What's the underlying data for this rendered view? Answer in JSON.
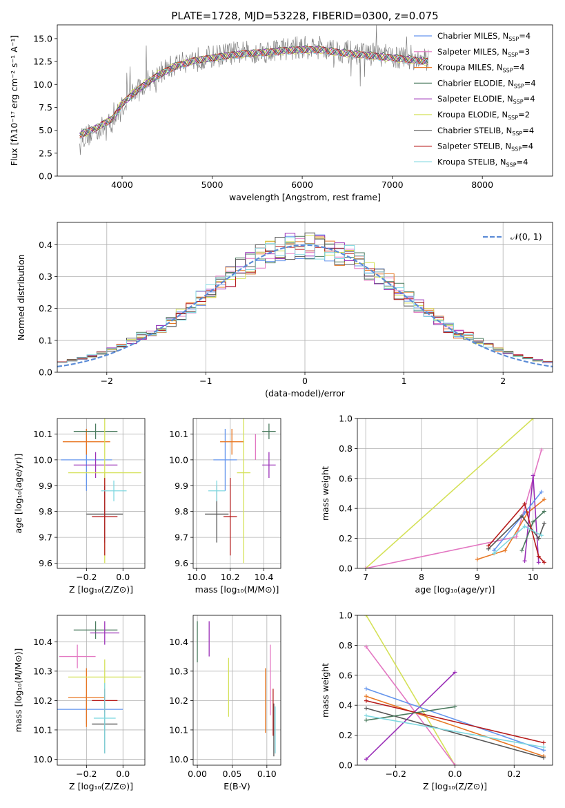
{
  "chart_data": [
    {
      "type": "line",
      "title": "PLATE=1728, MJD=53228, FIBERID=0300, z=0.075",
      "xlabel": "wavelength [Angstrom, rest frame]",
      "ylabel": "Flux [f_λ10^-17 erg cm^-2 s^-1 A^-1]",
      "xlim": [
        3280,
        8780
      ],
      "ylim": [
        0,
        16.5
      ],
      "xticks": [
        4000,
        5000,
        6000,
        7000,
        8000
      ],
      "yticks": [
        0.0,
        2.5,
        5.0,
        7.5,
        10.0,
        12.5,
        15.0
      ],
      "grid": false,
      "legend_position": "right",
      "observed": {
        "x": [
          3530,
          3600,
          3700,
          3800,
          3900,
          4000,
          4100,
          4200,
          4300,
          4400,
          4600,
          4800,
          5000,
          5200,
          5400,
          5600,
          5800,
          6000,
          6200,
          6400,
          6600,
          6800,
          7000,
          7200,
          7400
        ],
        "y": [
          4.6,
          4.3,
          5.0,
          5.3,
          6.0,
          7.5,
          9.0,
          9.5,
          10.5,
          11.2,
          12.2,
          12.8,
          13.0,
          13.4,
          13.5,
          13.6,
          13.9,
          14.0,
          14.1,
          13.7,
          13.4,
          13.3,
          13.0,
          12.8,
          12.6
        ],
        "color": "#808080"
      },
      "model_x": [
        3530,
        3700,
        3900,
        4000,
        4200,
        4400,
        4600,
        4800,
        5000,
        5200,
        5400,
        5600,
        5800,
        6000,
        6200,
        6400,
        6600,
        6800,
        7000,
        7200,
        7400
      ],
      "series": [
        {
          "name": "Chabrier MILES, N_SSP=4",
          "color": "#6495ed",
          "y": [
            4.5,
            5.2,
            6.3,
            7.9,
            9.6,
            11.0,
            12.0,
            12.6,
            12.9,
            13.2,
            13.4,
            13.5,
            13.7,
            13.8,
            13.8,
            13.5,
            13.3,
            13.1,
            12.9,
            12.7,
            12.5
          ]
        },
        {
          "name": "Salpeter MILES, N_SSP=3",
          "color": "#e377c2",
          "y": [
            4.4,
            5.1,
            6.2,
            7.8,
            9.5,
            10.9,
            11.9,
            12.5,
            12.8,
            13.1,
            13.3,
            13.4,
            13.6,
            13.7,
            13.7,
            13.4,
            13.2,
            13.0,
            12.8,
            12.6,
            12.4
          ]
        },
        {
          "name": "Kroupa MILES, N_SSP=4",
          "color": "#e87722",
          "y": [
            4.5,
            5.1,
            6.3,
            7.9,
            9.6,
            11.0,
            12.0,
            12.6,
            12.9,
            13.2,
            13.4,
            13.5,
            13.7,
            13.8,
            13.8,
            13.5,
            13.3,
            13.1,
            12.9,
            12.7,
            12.5
          ]
        },
        {
          "name": "Chabrier ELODIE, N_SSP=4",
          "color": "#4b7b5f",
          "y": [
            4.6,
            5.2,
            6.3,
            7.9,
            9.6,
            11.0,
            12.1,
            12.6,
            12.9,
            13.2,
            13.4,
            13.6,
            13.8,
            13.9,
            13.9,
            13.6,
            13.4,
            13.2,
            13.0,
            12.8,
            12.6
          ]
        },
        {
          "name": "Salpeter ELODIE, N_SSP=4",
          "color": "#9b30b8",
          "y": [
            4.5,
            5.2,
            6.3,
            7.9,
            9.6,
            11.0,
            12.0,
            12.6,
            12.9,
            13.2,
            13.4,
            13.5,
            13.7,
            13.8,
            13.8,
            13.5,
            13.3,
            13.1,
            12.9,
            12.7,
            12.5
          ]
        },
        {
          "name": "Kroupa ELODIE, N_SSP=2",
          "color": "#d4e157",
          "y": [
            4.4,
            5.1,
            6.4,
            8.1,
            9.8,
            11.2,
            12.1,
            12.6,
            12.9,
            13.1,
            13.3,
            13.4,
            13.6,
            13.7,
            13.7,
            13.4,
            13.2,
            13.0,
            12.8,
            12.6,
            12.4
          ]
        },
        {
          "name": "Chabrier STELIB, N_SSP=4",
          "color": "#555555",
          "y": [
            4.5,
            5.2,
            6.3,
            7.9,
            9.6,
            11.0,
            12.0,
            12.6,
            12.9,
            13.2,
            13.4,
            13.5,
            13.7,
            13.8,
            13.8,
            13.5,
            13.3,
            13.1,
            12.9,
            12.7,
            12.5
          ]
        },
        {
          "name": "Salpeter STELIB, N_SSP=4",
          "color": "#b71c1c",
          "y": [
            4.5,
            5.2,
            6.3,
            7.9,
            9.6,
            11.0,
            12.0,
            12.6,
            12.9,
            13.2,
            13.4,
            13.5,
            13.7,
            13.8,
            13.8,
            13.5,
            13.3,
            13.1,
            12.9,
            12.7,
            12.5
          ]
        },
        {
          "name": "Kroupa STELIB, N_SSP=4",
          "color": "#7fd8e0",
          "y": [
            4.4,
            5.1,
            6.2,
            7.8,
            9.5,
            10.9,
            11.9,
            12.5,
            12.8,
            13.1,
            13.3,
            13.4,
            13.6,
            13.7,
            13.7,
            13.4,
            13.2,
            13.0,
            12.8,
            12.6,
            12.4
          ]
        }
      ]
    },
    {
      "type": "line",
      "xlabel": "(data-model)/error",
      "ylabel": "Normed distribution",
      "xlim": [
        -2.5,
        2.5
      ],
      "ylim": [
        0,
        0.47
      ],
      "xticks": [
        -2,
        -1,
        0,
        1,
        2
      ],
      "yticks": [
        0.0,
        0.1,
        0.2,
        0.3,
        0.4
      ],
      "grid": true,
      "legend_position": "top-right",
      "reference": {
        "name": "𝒩(0, 1)",
        "color": "#5b8bd6",
        "mean": 0,
        "sigma": 1
      }
    },
    {
      "type": "scatter",
      "xlabel": "Z [log10(Z/Z⊙)]",
      "ylabel": "age [log10(age/yr)]",
      "xlim": [
        -0.36,
        0.12
      ],
      "ylim": [
        9.58,
        10.16
      ],
      "xticks": [
        -0.2,
        0.0
      ],
      "yticks": [
        9.6,
        9.7,
        9.8,
        9.9,
        10.0,
        10.1
      ],
      "grid": true,
      "points": [
        {
          "color": "#6495ed",
          "x": -0.2,
          "y": 10.0,
          "xerr": 0.14,
          "yerr": 0.12
        },
        {
          "color": "#e377c2",
          "x": -0.1,
          "y": 9.9,
          "xerr": 0.0,
          "yerr": 0.05
        },
        {
          "color": "#e87722",
          "x": -0.2,
          "y": 10.07,
          "xerr": 0.13,
          "yerr": 0.05
        },
        {
          "color": "#4b7b5f",
          "x": -0.15,
          "y": 10.11,
          "xerr": 0.12,
          "yerr": 0.03
        },
        {
          "color": "#9b30b8",
          "x": -0.15,
          "y": 9.98,
          "xerr": 0.12,
          "yerr": 0.05
        },
        {
          "color": "#d4e157",
          "x": -0.1,
          "y": 9.95,
          "xerr": 0.2,
          "yerr": 0.35
        },
        {
          "color": "#555555",
          "x": -0.1,
          "y": 9.79,
          "xerr": 0.1,
          "yerr": 0.11
        },
        {
          "color": "#b71c1c",
          "x": -0.1,
          "y": 9.78,
          "xerr": 0.07,
          "yerr": 0.15
        },
        {
          "color": "#7fd8e0",
          "x": -0.05,
          "y": 9.88,
          "xerr": 0.07,
          "yerr": 0.04
        }
      ]
    },
    {
      "type": "scatter",
      "xlabel": "mass [log10(M/M⊙)]",
      "ylabel": "",
      "xlim": [
        9.98,
        10.5
      ],
      "ylim": [
        9.58,
        10.16
      ],
      "xticks": [
        10.0,
        10.2,
        10.4
      ],
      "yticks": [
        9.6,
        9.7,
        9.8,
        9.9,
        10.0,
        10.1
      ],
      "grid": true,
      "points": [
        {
          "color": "#6495ed",
          "x": 10.17,
          "y": 10.0,
          "xerr": 0.07,
          "yerr": 0.12
        },
        {
          "color": "#e377c2",
          "x": 10.35,
          "y": 10.05,
          "xerr": 0.0,
          "yerr": 0.05
        },
        {
          "color": "#e87722",
          "x": 10.21,
          "y": 10.07,
          "xerr": 0.07,
          "yerr": 0.05
        },
        {
          "color": "#4b7b5f",
          "x": 10.43,
          "y": 10.11,
          "xerr": 0.04,
          "yerr": 0.03
        },
        {
          "color": "#9b30b8",
          "x": 10.43,
          "y": 9.98,
          "xerr": 0.04,
          "yerr": 0.05
        },
        {
          "color": "#d4e157",
          "x": 10.28,
          "y": 9.95,
          "xerr": 0.04,
          "yerr": 0.35
        },
        {
          "color": "#555555",
          "x": 10.12,
          "y": 9.79,
          "xerr": 0.07,
          "yerr": 0.11
        },
        {
          "color": "#b71c1c",
          "x": 10.2,
          "y": 9.78,
          "xerr": 0.04,
          "yerr": 0.15
        },
        {
          "color": "#7fd8e0",
          "x": 10.12,
          "y": 9.88,
          "xerr": 0.05,
          "yerr": 0.04
        }
      ]
    },
    {
      "type": "line",
      "xlabel": "age [log10(age/yr)]",
      "ylabel": "mass weight",
      "xlim": [
        6.85,
        10.35
      ],
      "ylim": [
        0,
        1
      ],
      "xticks": [
        7,
        8,
        9,
        10
      ],
      "yticks": [
        0.0,
        0.2,
        0.4,
        0.6,
        0.8,
        1.0
      ],
      "grid": true,
      "series": [
        {
          "color": "#d4e157",
          "x": [
            7.0,
            10.0
          ],
          "y": [
            0.0,
            1.0
          ]
        },
        {
          "color": "#e377c2",
          "x": [
            7.0,
            9.7,
            10.15
          ],
          "y": [
            0.0,
            0.21,
            0.79
          ]
        },
        {
          "color": "#e87722",
          "x": [
            9.0,
            9.5,
            9.9,
            10.2
          ],
          "y": [
            0.06,
            0.12,
            0.37,
            0.46
          ]
        },
        {
          "color": "#9b30b8",
          "x": [
            9.85,
            10.0,
            10.1
          ],
          "y": [
            0.05,
            0.62,
            0.04
          ]
        },
        {
          "color": "#4b7b5f",
          "x": [
            9.8,
            10.0,
            10.2
          ],
          "y": [
            0.12,
            0.31,
            0.38
          ]
        },
        {
          "color": "#6495ed",
          "x": [
            9.3,
            9.85,
            10.15
          ],
          "y": [
            0.12,
            0.37,
            0.51
          ]
        },
        {
          "color": "#555555",
          "x": [
            9.2,
            9.8,
            10.1,
            10.2
          ],
          "y": [
            0.13,
            0.35,
            0.2,
            0.3
          ]
        },
        {
          "color": "#b71c1c",
          "x": [
            9.2,
            9.85,
            10.1,
            10.2
          ],
          "y": [
            0.15,
            0.43,
            0.08,
            0.04
          ]
        },
        {
          "color": "#7fd8e0",
          "x": [
            9.3,
            9.85,
            10.15
          ],
          "y": [
            0.1,
            0.28,
            0.22
          ]
        }
      ]
    },
    {
      "type": "scatter",
      "xlabel": "Z [log10(Z/Z⊙)]",
      "ylabel": "mass [log10(M/M⊙)]",
      "xlim": [
        -0.36,
        0.12
      ],
      "ylim": [
        9.98,
        10.49
      ],
      "xticks": [
        -0.2,
        0.0
      ],
      "yticks": [
        10.0,
        10.1,
        10.2,
        10.3,
        10.4
      ],
      "grid": true,
      "points": [
        {
          "color": "#6495ed",
          "x": -0.2,
          "y": 10.17,
          "xerr": 0.2,
          "yerr": 0.05
        },
        {
          "color": "#e377c2",
          "x": -0.25,
          "y": 10.35,
          "xerr": 0.1,
          "yerr": 0.04
        },
        {
          "color": "#e87722",
          "x": -0.2,
          "y": 10.21,
          "xerr": 0.1,
          "yerr": 0.1
        },
        {
          "color": "#4b7b5f",
          "x": -0.15,
          "y": 10.44,
          "xerr": 0.12,
          "yerr": 0.03
        },
        {
          "color": "#9b30b8",
          "x": -0.1,
          "y": 10.43,
          "xerr": 0.08,
          "yerr": 0.04
        },
        {
          "color": "#d4e157",
          "x": -0.1,
          "y": 10.28,
          "xerr": 0.2,
          "yerr": 0.06
        },
        {
          "color": "#555555",
          "x": -0.1,
          "y": 10.12,
          "xerr": 0.07,
          "yerr": 0.1
        },
        {
          "color": "#b71c1c",
          "x": -0.1,
          "y": 10.2,
          "xerr": 0.07,
          "yerr": 0.04
        },
        {
          "color": "#7fd8e0",
          "x": -0.1,
          "y": 10.14,
          "xerr": 0.06,
          "yerr": 0.12
        }
      ]
    },
    {
      "type": "scatter",
      "xlabel": "E(B-V)",
      "ylabel": "",
      "xlim": [
        -0.006,
        0.12
      ],
      "ylim": [
        9.98,
        10.49
      ],
      "xticks": [
        0.0,
        0.05,
        0.1
      ],
      "yticks": [
        10.0,
        10.1,
        10.2,
        10.3,
        10.4
      ],
      "grid": true,
      "points": [
        {
          "color": "#4b7b5f",
          "x": 0.0,
          "y": 10.4,
          "xerr": 0,
          "yerr": 0.07
        },
        {
          "color": "#9b30b8",
          "x": 0.017,
          "y": 10.41,
          "xerr": 0,
          "yerr": 0.06
        },
        {
          "color": "#d4e157",
          "x": 0.045,
          "y": 10.245,
          "xerr": 0,
          "yerr": 0.1
        },
        {
          "color": "#e87722",
          "x": 0.098,
          "y": 10.2,
          "xerr": 0,
          "yerr": 0.11
        },
        {
          "color": "#e377c2",
          "x": 0.105,
          "y": 10.27,
          "xerr": 0,
          "yerr": 0.12
        },
        {
          "color": "#555555",
          "x": 0.11,
          "y": 10.1,
          "xerr": 0,
          "yerr": 0.09
        },
        {
          "color": "#b71c1c",
          "x": 0.109,
          "y": 10.16,
          "xerr": 0,
          "yerr": 0.08
        },
        {
          "color": "#7fd8e0",
          "x": 0.112,
          "y": 10.1,
          "xerr": 0,
          "yerr": 0.08
        }
      ]
    },
    {
      "type": "line",
      "xlabel": "Z [log10(Z/Z⊙)]",
      "ylabel": "mass weight",
      "xlim": [
        -0.33,
        0.33
      ],
      "ylim": [
        0,
        1
      ],
      "xticks": [
        -0.2,
        0.0,
        0.2
      ],
      "yticks": [
        0.0,
        0.2,
        0.4,
        0.6,
        0.8,
        1.0
      ],
      "grid": true,
      "series": [
        {
          "color": "#d4e157",
          "x": [
            -0.3,
            0.0
          ],
          "y": [
            1.0,
            0.0
          ]
        },
        {
          "color": "#e377c2",
          "x": [
            -0.3,
            0.0
          ],
          "y": [
            0.79,
            0.0
          ]
        },
        {
          "color": "#9b30b8",
          "x": [
            -0.3,
            0.0
          ],
          "y": [
            0.04,
            0.62
          ]
        },
        {
          "color": "#6495ed",
          "x": [
            -0.3,
            0.3
          ],
          "y": [
            0.51,
            0.1
          ]
        },
        {
          "color": "#e87722",
          "x": [
            -0.3,
            0.3
          ],
          "y": [
            0.46,
            0.06
          ]
        },
        {
          "color": "#b71c1c",
          "x": [
            -0.3,
            0.3
          ],
          "y": [
            0.43,
            0.15
          ]
        },
        {
          "color": "#555555",
          "x": [
            -0.3,
            0.3
          ],
          "y": [
            0.38,
            0.05
          ]
        },
        {
          "color": "#4b7b5f",
          "x": [
            -0.3,
            0.0
          ],
          "y": [
            0.3,
            0.39
          ]
        },
        {
          "color": "#7fd8e0",
          "x": [
            -0.3,
            0.3
          ],
          "y": [
            0.33,
            0.12
          ]
        }
      ]
    }
  ]
}
